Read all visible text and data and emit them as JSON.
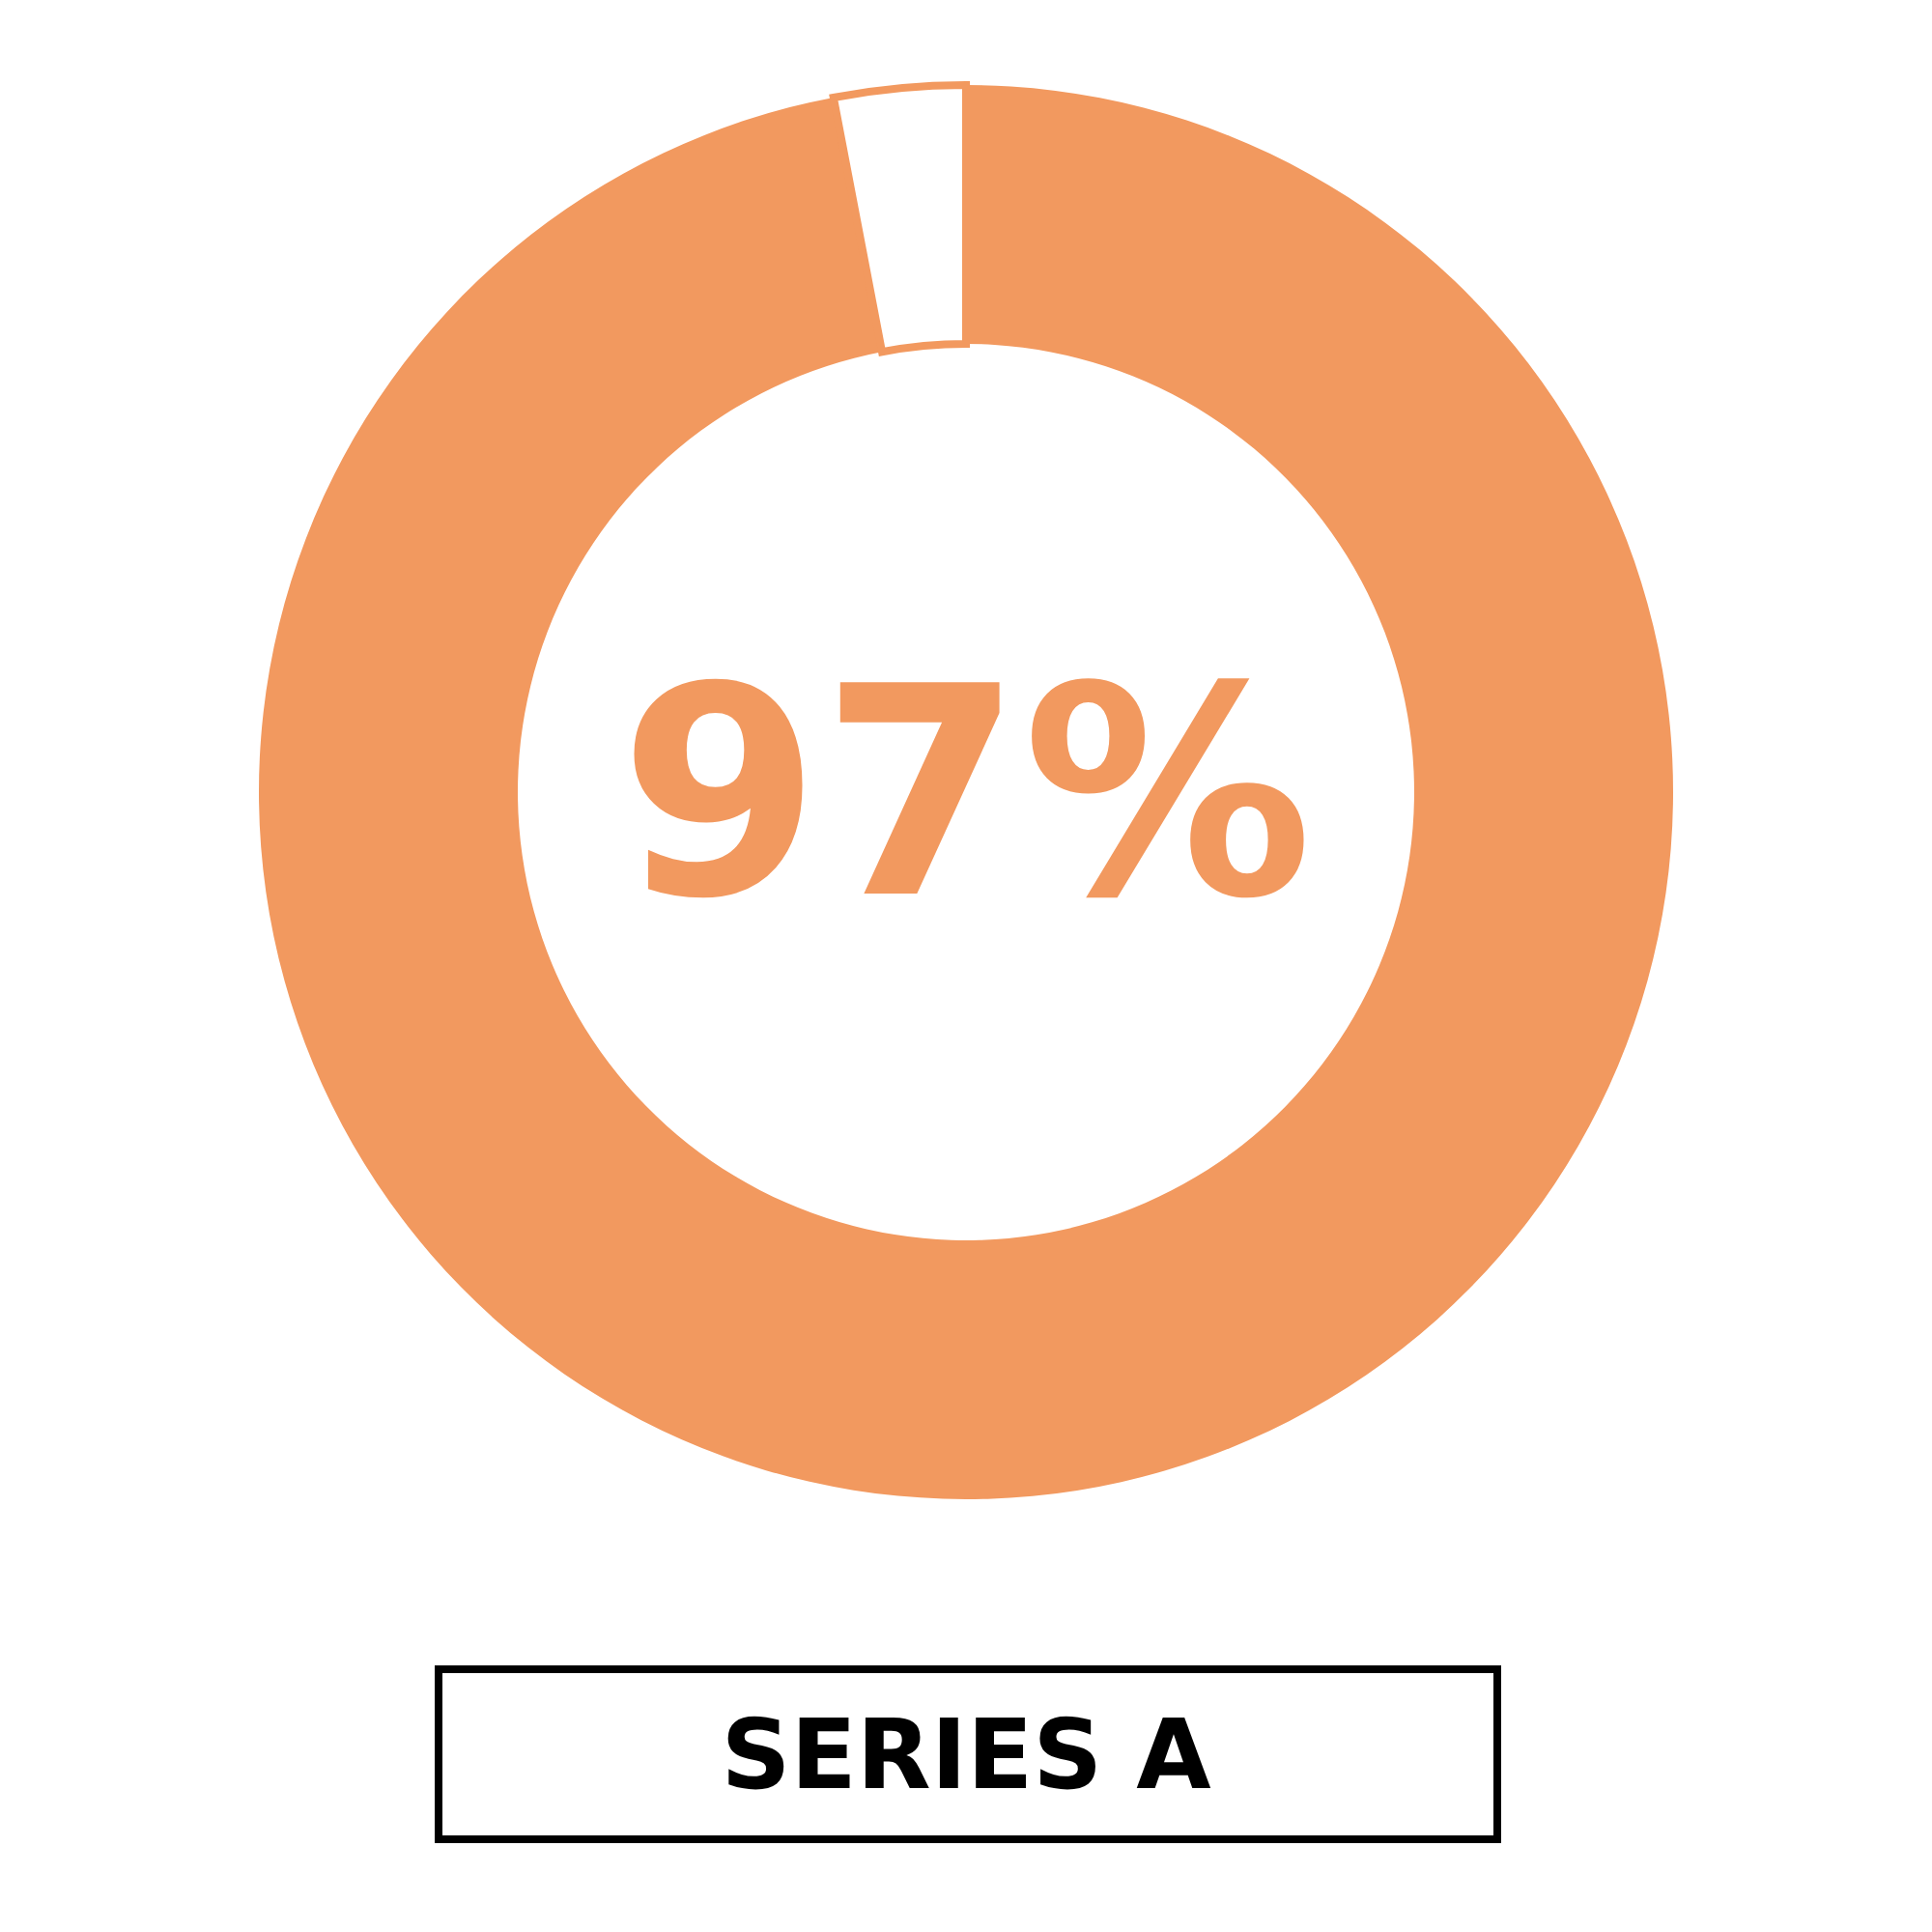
{
  "chart_data": {
    "type": "donut",
    "title": "SERIES A",
    "categories": [
      null,
      null
    ],
    "values": [
      97,
      3
    ],
    "colors": [
      "#f2995f",
      "#ffffff"
    ],
    "value_labels": [
      "97%",
      null
    ]
  }
}
